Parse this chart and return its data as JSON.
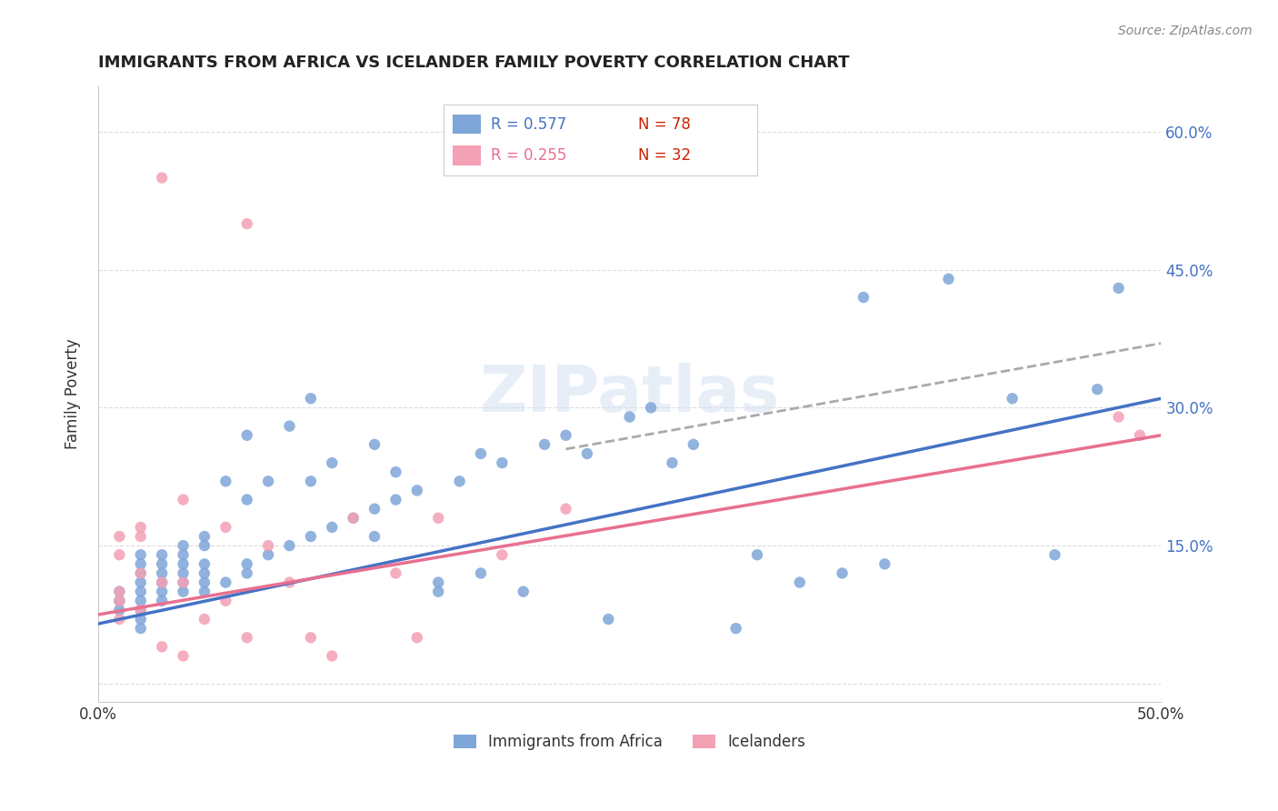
{
  "title": "IMMIGRANTS FROM AFRICA VS ICELANDER FAMILY POVERTY CORRELATION CHART",
  "source": "Source: ZipAtlas.com",
  "ylabel": "Family Poverty",
  "xlim": [
    0.0,
    0.5
  ],
  "ylim": [
    -0.02,
    0.65
  ],
  "xticks": [
    0.0,
    0.1,
    0.2,
    0.3,
    0.4,
    0.5
  ],
  "xticklabels": [
    "0.0%",
    "",
    "",
    "",
    "",
    "50.0%"
  ],
  "yticks": [
    0.0,
    0.15,
    0.3,
    0.45,
    0.6
  ],
  "blue_color": "#7ea6d8",
  "pink_color": "#f4a0b5",
  "blue_line_color": "#4472c4",
  "pink_line_color": "#e87090",
  "dashed_line_color": "#aaaaaa",
  "legend_blue_r": "R = 0.577",
  "legend_blue_n": "N = 78",
  "legend_pink_r": "R = 0.255",
  "legend_pink_n": "N = 32",
  "legend_n_color": "#cc2200",
  "watermark": "ZIPatlas",
  "legend_label_blue": "Immigrants from Africa",
  "legend_label_pink": "Icelanders",
  "blue_scatter_x": [
    0.01,
    0.01,
    0.01,
    0.02,
    0.02,
    0.02,
    0.02,
    0.02,
    0.02,
    0.02,
    0.02,
    0.02,
    0.03,
    0.03,
    0.03,
    0.03,
    0.03,
    0.03,
    0.04,
    0.04,
    0.04,
    0.04,
    0.04,
    0.04,
    0.05,
    0.05,
    0.05,
    0.05,
    0.05,
    0.05,
    0.06,
    0.06,
    0.07,
    0.07,
    0.07,
    0.07,
    0.08,
    0.08,
    0.09,
    0.09,
    0.1,
    0.1,
    0.1,
    0.11,
    0.11,
    0.12,
    0.13,
    0.13,
    0.13,
    0.14,
    0.14,
    0.15,
    0.16,
    0.16,
    0.17,
    0.18,
    0.18,
    0.19,
    0.2,
    0.21,
    0.22,
    0.23,
    0.24,
    0.25,
    0.26,
    0.27,
    0.28,
    0.3,
    0.31,
    0.33,
    0.35,
    0.36,
    0.37,
    0.4,
    0.43,
    0.45,
    0.47,
    0.48
  ],
  "blue_scatter_y": [
    0.08,
    0.09,
    0.1,
    0.06,
    0.07,
    0.08,
    0.09,
    0.1,
    0.11,
    0.12,
    0.13,
    0.14,
    0.09,
    0.1,
    0.11,
    0.12,
    0.13,
    0.14,
    0.1,
    0.11,
    0.12,
    0.13,
    0.14,
    0.15,
    0.1,
    0.11,
    0.12,
    0.13,
    0.15,
    0.16,
    0.11,
    0.22,
    0.12,
    0.13,
    0.2,
    0.27,
    0.14,
    0.22,
    0.15,
    0.28,
    0.16,
    0.22,
    0.31,
    0.17,
    0.24,
    0.18,
    0.16,
    0.19,
    0.26,
    0.2,
    0.23,
    0.21,
    0.1,
    0.11,
    0.22,
    0.12,
    0.25,
    0.24,
    0.1,
    0.26,
    0.27,
    0.25,
    0.07,
    0.29,
    0.3,
    0.24,
    0.26,
    0.06,
    0.14,
    0.11,
    0.12,
    0.42,
    0.13,
    0.44,
    0.31,
    0.14,
    0.32,
    0.43
  ],
  "pink_scatter_x": [
    0.01,
    0.01,
    0.01,
    0.01,
    0.01,
    0.02,
    0.02,
    0.02,
    0.02,
    0.03,
    0.03,
    0.03,
    0.04,
    0.04,
    0.04,
    0.05,
    0.06,
    0.06,
    0.07,
    0.07,
    0.08,
    0.09,
    0.1,
    0.11,
    0.12,
    0.14,
    0.15,
    0.16,
    0.19,
    0.22,
    0.48,
    0.49
  ],
  "pink_scatter_y": [
    0.07,
    0.09,
    0.1,
    0.14,
    0.16,
    0.08,
    0.12,
    0.16,
    0.17,
    0.04,
    0.11,
    0.55,
    0.03,
    0.11,
    0.2,
    0.07,
    0.09,
    0.17,
    0.05,
    0.5,
    0.15,
    0.11,
    0.05,
    0.03,
    0.18,
    0.12,
    0.05,
    0.18,
    0.14,
    0.19,
    0.29,
    0.27
  ],
  "blue_line_x": [
    0.0,
    0.5
  ],
  "blue_line_y": [
    0.065,
    0.31
  ],
  "pink_line_x": [
    0.0,
    0.5
  ],
  "pink_line_y": [
    0.075,
    0.27
  ],
  "dashed_line_x": [
    0.22,
    0.5
  ],
  "dashed_line_y": [
    0.255,
    0.37
  ],
  "background_color": "#ffffff",
  "grid_color": "#dddddd",
  "right_ytick_labels": [
    "",
    "15.0%",
    "30.0%",
    "45.0%",
    "60.0%"
  ]
}
